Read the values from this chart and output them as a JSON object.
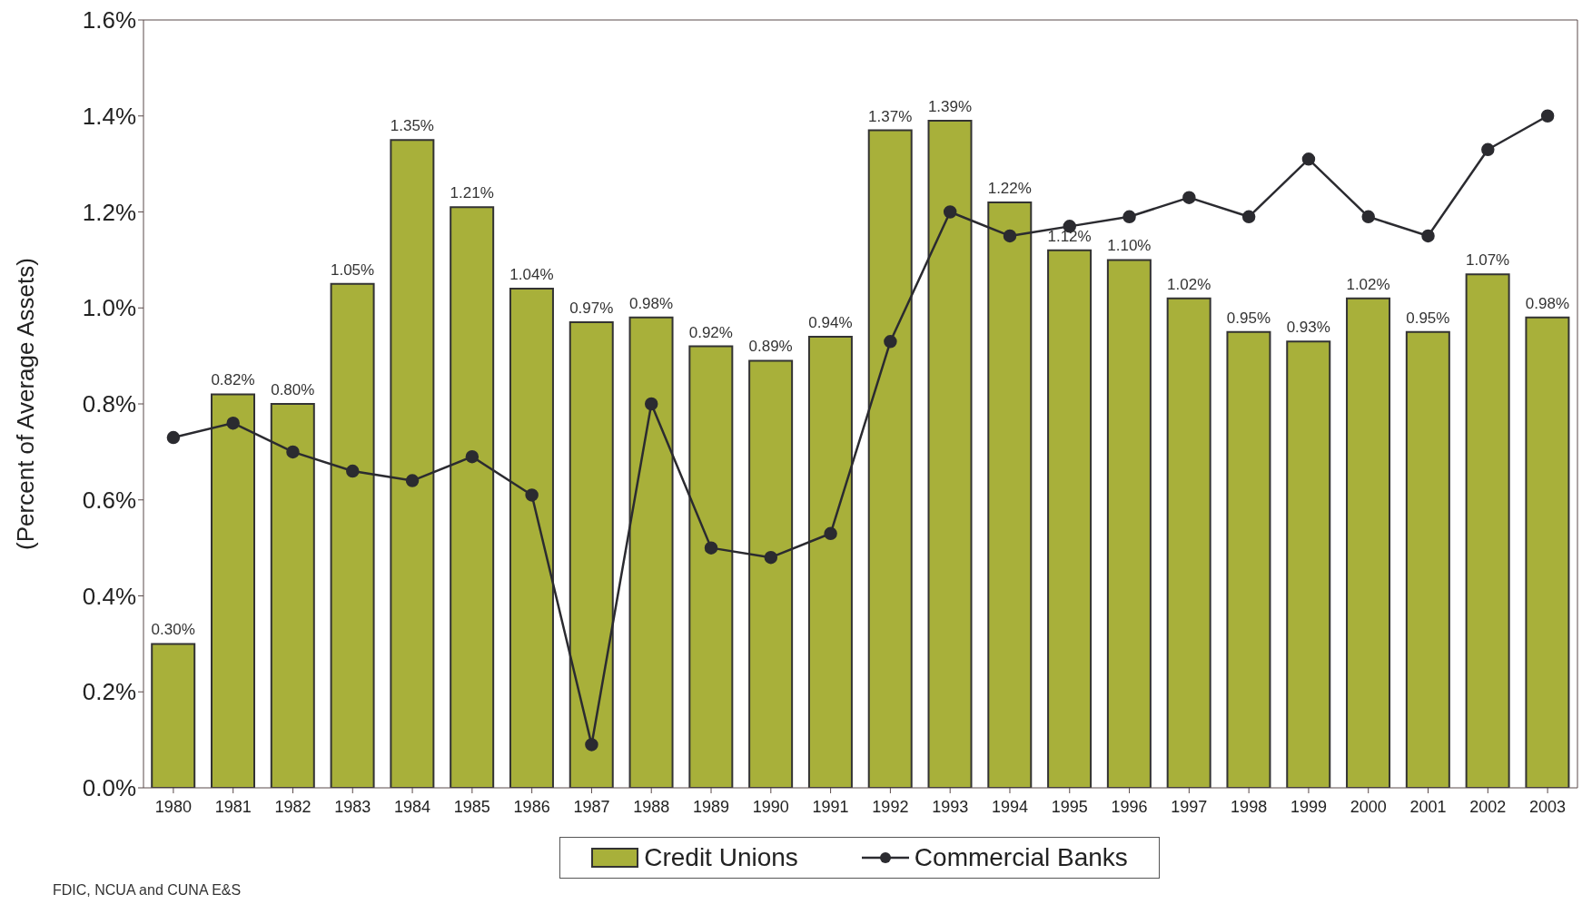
{
  "chart_data": {
    "type": "bar",
    "ylabel": "(Percent of Average Assets)",
    "categories": [
      "1980",
      "1981",
      "1982",
      "1983",
      "1984",
      "1985",
      "1986",
      "1987",
      "1988",
      "1989",
      "1990",
      "1991",
      "1992",
      "1993",
      "1994",
      "1995",
      "1996",
      "1997",
      "1998",
      "1999",
      "2000",
      "2001",
      "2002",
      "2003"
    ],
    "series": [
      {
        "name": "Credit Unions",
        "color": "#a8b03a",
        "values": [
          0.3,
          0.82,
          0.8,
          1.05,
          1.35,
          1.21,
          1.04,
          0.97,
          0.98,
          0.92,
          0.89,
          0.94,
          1.37,
          1.39,
          1.22,
          1.12,
          1.1,
          1.02,
          0.95,
          0.93,
          1.02,
          0.95,
          1.07,
          0.98
        ],
        "value_labels": [
          "0.30%",
          "0.82%",
          "0.80%",
          "1.05%",
          "1.35%",
          "1.21%",
          "1.04%",
          "0.97%",
          "0.98%",
          "0.92%",
          "0.89%",
          "0.94%",
          "1.37%",
          "1.39%",
          "1.22%",
          "1.12%",
          "1.10%",
          "1.02%",
          "0.95%",
          "0.93%",
          "1.02%",
          "0.95%",
          "1.07%",
          "0.98%"
        ]
      },
      {
        "name": "Commercial Banks",
        "type": "line",
        "color": "#2b2b30",
        "marker": "circle",
        "values": [
          0.73,
          0.76,
          0.7,
          0.66,
          0.64,
          0.69,
          0.61,
          0.09,
          0.8,
          0.5,
          0.48,
          0.53,
          0.93,
          1.2,
          1.15,
          1.17,
          1.19,
          1.23,
          1.19,
          1.31,
          1.19,
          1.15,
          1.33,
          1.4
        ]
      }
    ],
    "ylim": [
      0,
      1.6
    ],
    "yticks": [
      {
        "value": 0,
        "label": "0.0%"
      },
      {
        "value": 0.2,
        "label": "0.2%"
      },
      {
        "value": 0.4,
        "label": "0.4%"
      },
      {
        "value": 0.6,
        "label": "0.6%"
      },
      {
        "value": 0.8,
        "label": "0.8%"
      },
      {
        "value": 1.0,
        "label": "1.0%"
      },
      {
        "value": 1.2,
        "label": "1.2%"
      },
      {
        "value": 1.4,
        "label": "1.4%"
      },
      {
        "value": 1.6,
        "label": "1.6%"
      }
    ],
    "grid": false,
    "legend": "bottom",
    "annotations": [
      "FDIC, NCUA and CUNA E&S"
    ]
  }
}
